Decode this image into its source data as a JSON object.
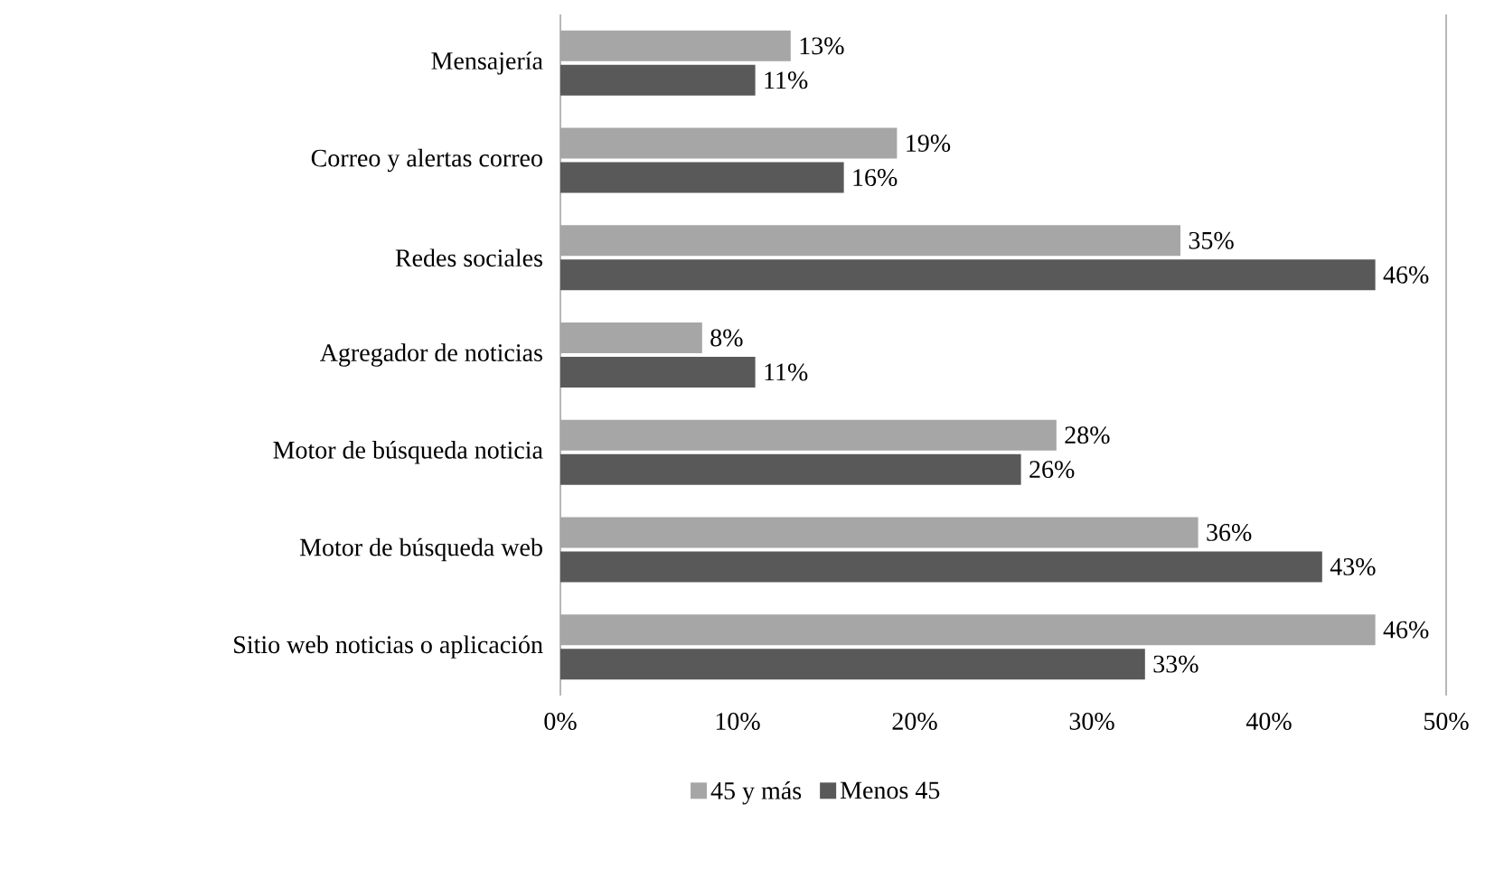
{
  "chart_data": {
    "type": "bar",
    "orientation": "horizontal",
    "categories": [
      "Mensajería",
      "Correo y alertas correo",
      "Redes sociales",
      "Agregador de noticias",
      "Motor de búsqueda noticia",
      "Motor de búsqueda web",
      "Sitio web noticias o aplicación"
    ],
    "series": [
      {
        "name": "45 y más",
        "color": "#a6a6a6",
        "values": [
          13,
          19,
          35,
          8,
          28,
          36,
          46
        ],
        "value_labels": [
          "13%",
          "19%",
          "35%",
          "8%",
          "28%",
          "36%",
          "46%"
        ]
      },
      {
        "name": "Menos 45",
        "color": "#595959",
        "values": [
          11,
          16,
          46,
          11,
          26,
          43,
          33
        ],
        "value_labels": [
          "11%",
          "16%",
          "46%",
          "11%",
          "26%",
          "43%",
          "33%"
        ]
      }
    ],
    "xlim": [
      0,
      50
    ],
    "xticks": [
      {
        "value": 0,
        "label": "0%"
      },
      {
        "value": 10,
        "label": "10%"
      },
      {
        "value": 20,
        "label": "20%"
      },
      {
        "value": 30,
        "label": "30%"
      },
      {
        "value": 40,
        "label": "40%"
      },
      {
        "value": 50,
        "label": "50%"
      }
    ],
    "legend": "bottom"
  }
}
